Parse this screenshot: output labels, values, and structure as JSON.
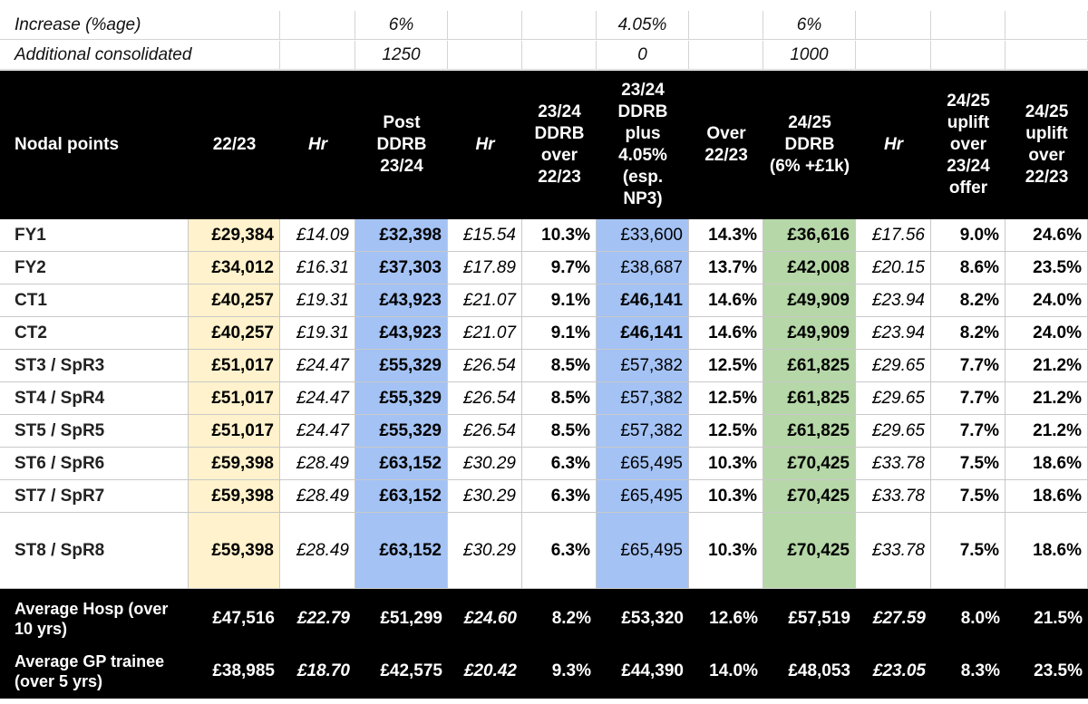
{
  "top_rows": [
    {
      "label": "Increase (%age)",
      "post_ddrb": "6%",
      "ddrb_plus": "4.05%",
      "ddrb_2425": "6%"
    },
    {
      "label": "Additional consolidated",
      "post_ddrb": "1250",
      "ddrb_plus": "0",
      "ddrb_2425": "1000"
    }
  ],
  "headers": [
    "Nodal points",
    "22/23",
    "Hr",
    "Post DDRB 23/24",
    "Hr",
    "23/24 DDRB over 22/23",
    "23/24 DDRB plus 4.05% (esp. NP3)",
    "Over 22/23",
    "24/25 DDRB (6% +£1k)",
    "Hr",
    "24/25 uplift over 23/24 offer",
    "24/25 uplift over 22/23"
  ],
  "rows": [
    [
      "FY1",
      "£29,384",
      "£14.09",
      "£32,398",
      "£15.54",
      "10.3%",
      "£33,600",
      "14.3%",
      "£36,616",
      "£17.56",
      "9.0%",
      "24.6%"
    ],
    [
      "FY2",
      "£34,012",
      "£16.31",
      "£37,303",
      "£17.89",
      "9.7%",
      "£38,687",
      "13.7%",
      "£42,008",
      "£20.15",
      "8.6%",
      "23.5%"
    ],
    [
      "CT1",
      "£40,257",
      "£19.31",
      "£43,923",
      "£21.07",
      "9.1%",
      "£46,141",
      "14.6%",
      "£49,909",
      "£23.94",
      "8.2%",
      "24.0%"
    ],
    [
      "CT2",
      "£40,257",
      "£19.31",
      "£43,923",
      "£21.07",
      "9.1%",
      "£46,141",
      "14.6%",
      "£49,909",
      "£23.94",
      "8.2%",
      "24.0%"
    ],
    [
      "ST3 / SpR3",
      "£51,017",
      "£24.47",
      "£55,329",
      "£26.54",
      "8.5%",
      "£57,382",
      "12.5%",
      "£61,825",
      "£29.65",
      "7.7%",
      "21.2%"
    ],
    [
      "ST4 / SpR4",
      "£51,017",
      "£24.47",
      "£55,329",
      "£26.54",
      "8.5%",
      "£57,382",
      "12.5%",
      "£61,825",
      "£29.65",
      "7.7%",
      "21.2%"
    ],
    [
      "ST5 / SpR5",
      "£51,017",
      "£24.47",
      "£55,329",
      "£26.54",
      "8.5%",
      "£57,382",
      "12.5%",
      "£61,825",
      "£29.65",
      "7.7%",
      "21.2%"
    ],
    [
      "ST6 / SpR6",
      "£59,398",
      "£28.49",
      "£63,152",
      "£30.29",
      "6.3%",
      "£65,495",
      "10.3%",
      "£70,425",
      "£33.78",
      "7.5%",
      "18.6%"
    ],
    [
      "ST7 / SpR7",
      "£59,398",
      "£28.49",
      "£63,152",
      "£30.29",
      "6.3%",
      "£65,495",
      "10.3%",
      "£70,425",
      "£33.78",
      "7.5%",
      "18.6%"
    ],
    [
      "ST8 / SpR8",
      "£59,398",
      "£28.49",
      "£63,152",
      "£30.29",
      "6.3%",
      "£65,495",
      "10.3%",
      "£70,425",
      "£33.78",
      "7.5%",
      "18.6%"
    ]
  ],
  "bold_ddrb_plus_rows": [
    2,
    3
  ],
  "footer": [
    [
      "Average Hosp (over 10 yrs)",
      "£47,516",
      "£22.79",
      "£51,299",
      "£24.60",
      "8.2%",
      "£53,320",
      "12.6%",
      "£57,519",
      "£27.59",
      "8.0%",
      "21.5%"
    ],
    [
      "Average GP trainee (over 5 yrs)",
      "£38,985",
      "£18.70",
      "£42,575",
      "£20.42",
      "9.3%",
      "£44,390",
      "14.0%",
      "£48,053",
      "£23.05",
      "8.3%",
      "23.5%"
    ]
  ],
  "colors": {
    "yellow": "#fff2cc",
    "blue": "#a4c2f4",
    "green": "#b6d7a8",
    "header": "#000000"
  }
}
